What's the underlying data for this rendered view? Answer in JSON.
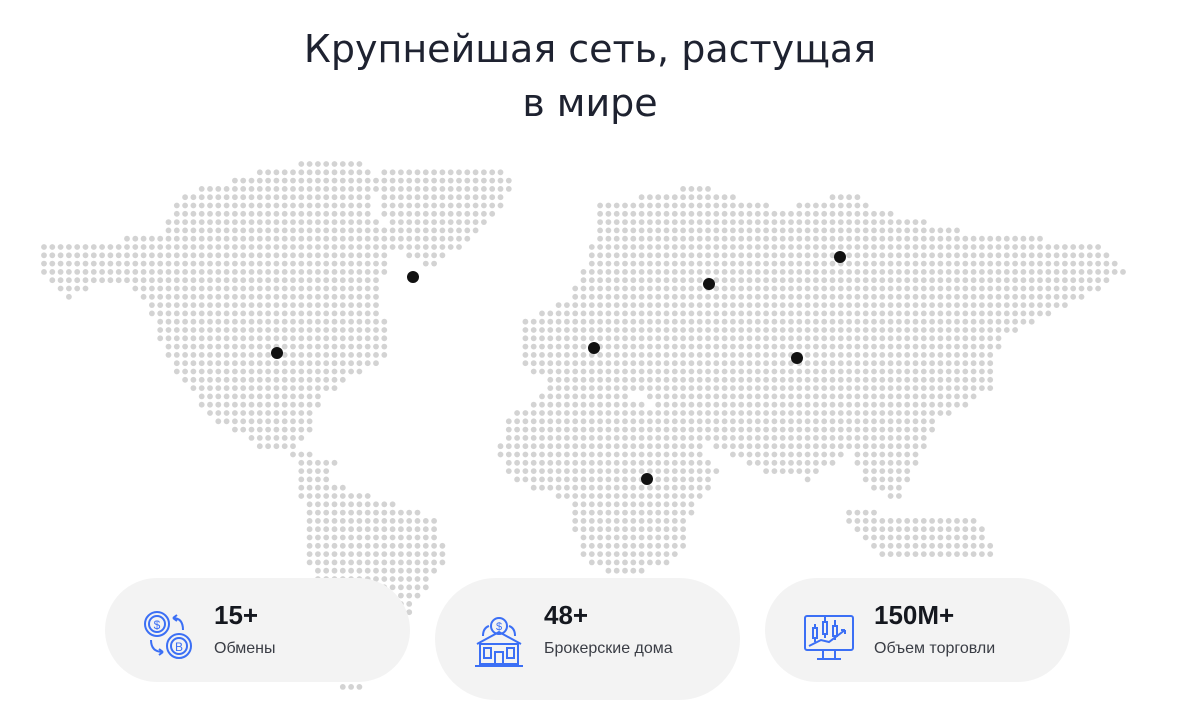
{
  "heading": {
    "line1": "Крупнейшая сеть, растущая",
    "line2": "в мире"
  },
  "colors": {
    "map_dot": "#d3d3d3",
    "marker": "#111111",
    "icon_accent": "#3b6ff5",
    "card_bg": "#f3f3f3"
  },
  "stats": [
    {
      "value": "15+",
      "label": "Обмены",
      "icon": "coin-exchange-icon"
    },
    {
      "value": "48+",
      "label": "Брокерские дома",
      "icon": "brokerage-house-icon"
    },
    {
      "value": "150M+",
      "label": "Объем торговли",
      "icon": "trading-chart-monitor-icon"
    }
  ]
}
